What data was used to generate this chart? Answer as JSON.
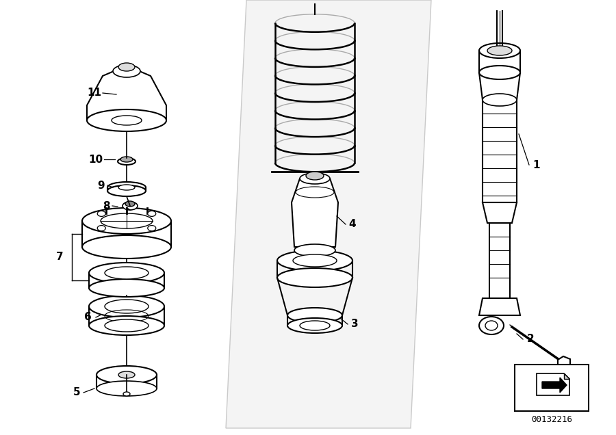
{
  "title": "",
  "bg_color": "#ffffff",
  "line_color": "#000000",
  "label_color": "#000000",
  "part_number": "00132216",
  "fig_width": 9.0,
  "fig_height": 6.36,
  "dpi": 100
}
